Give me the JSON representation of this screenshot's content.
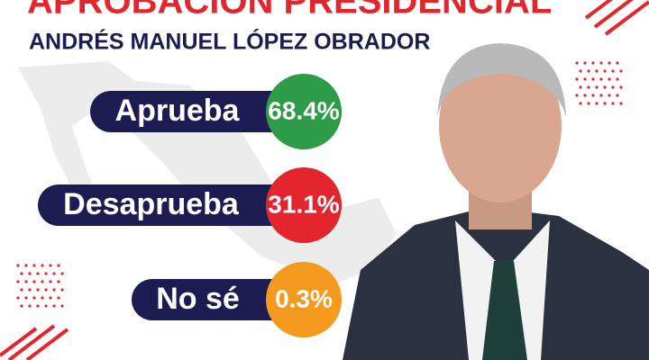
{
  "header": {
    "title": "APROBACIÓN PRESIDENCIAL",
    "subtitle": "ANDRÉS MANUEL LÓPEZ OBRADOR"
  },
  "items": [
    {
      "label": "Aprueba",
      "value": "68.4%"
    },
    {
      "label": "Desaprueba",
      "value": "31.1%"
    },
    {
      "label": "No sé",
      "value": "0.3%"
    }
  ]
}
